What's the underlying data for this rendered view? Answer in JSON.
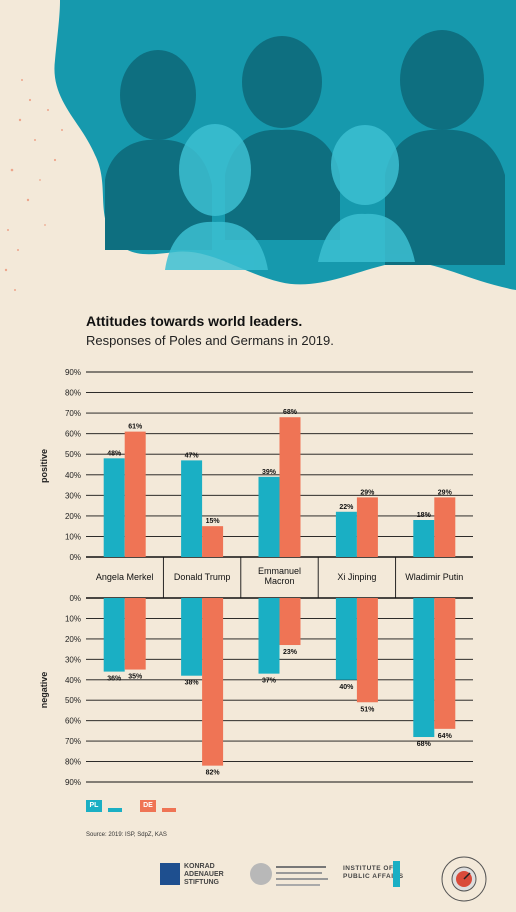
{
  "title": "Attitudes towards world leaders.",
  "subtitle": "Responses of Poles and Germans in 2019.",
  "colors": {
    "pl": "#1aafc4",
    "de": "#ef7455",
    "hero": "#1699ad",
    "background": "#f3e9d9"
  },
  "legend": {
    "pl_label": "PL",
    "de_label": "DE"
  },
  "source": "Source: 2019: ISP, SdpZ, KAS",
  "logos": {
    "kas_line1": "KONRAD",
    "kas_line2": "ADENAUER",
    "kas_line3": "STIFTUNG",
    "isp_line1": "INSTITUTE OF",
    "isp_line2": "PUBLIC AFFAIRS"
  },
  "chart_data": [
    {
      "type": "bar",
      "ylabel": "positive",
      "ylim": [
        0,
        90
      ],
      "yticks": [
        "0%",
        "10%",
        "20%",
        "30%",
        "40%",
        "50%",
        "60%",
        "70%",
        "80%",
        "90%"
      ],
      "categories": [
        "Angela Merkel",
        "Donald Trump",
        "Emmanuel Macron",
        "Xi Jinping",
        "Wladimir Putin"
      ],
      "series": [
        {
          "name": "PL",
          "values": [
            48,
            47,
            39,
            22,
            18
          ]
        },
        {
          "name": "DE",
          "values": [
            61,
            15,
            68,
            29,
            29
          ]
        }
      ],
      "data_labels": {
        "PL": [
          "48%",
          "47%",
          "39%",
          "22%",
          "18%"
        ],
        "DE": [
          "61%",
          "15%",
          "68%",
          "29%",
          "29%"
        ]
      },
      "grid": true
    },
    {
      "type": "bar",
      "ylabel": "negative",
      "ylim": [
        0,
        90
      ],
      "inverted": true,
      "yticks": [
        "0%",
        "10%",
        "20%",
        "30%",
        "40%",
        "50%",
        "60%",
        "70%",
        "80%",
        "90%"
      ],
      "categories": [
        "Angela Merkel",
        "Donald Trump",
        "Emmanuel Macron",
        "Xi Jinping",
        "Wladimir Putin"
      ],
      "series": [
        {
          "name": "PL",
          "values": [
            36,
            38,
            37,
            40,
            68
          ]
        },
        {
          "name": "DE",
          "values": [
            35,
            82,
            23,
            51,
            64
          ]
        }
      ],
      "data_labels": {
        "PL": [
          "36%",
          "38%",
          "37%",
          "40%",
          "68%"
        ],
        "DE": [
          "35%",
          "82%",
          "23%",
          "51%",
          "64%"
        ]
      },
      "grid": true
    }
  ]
}
